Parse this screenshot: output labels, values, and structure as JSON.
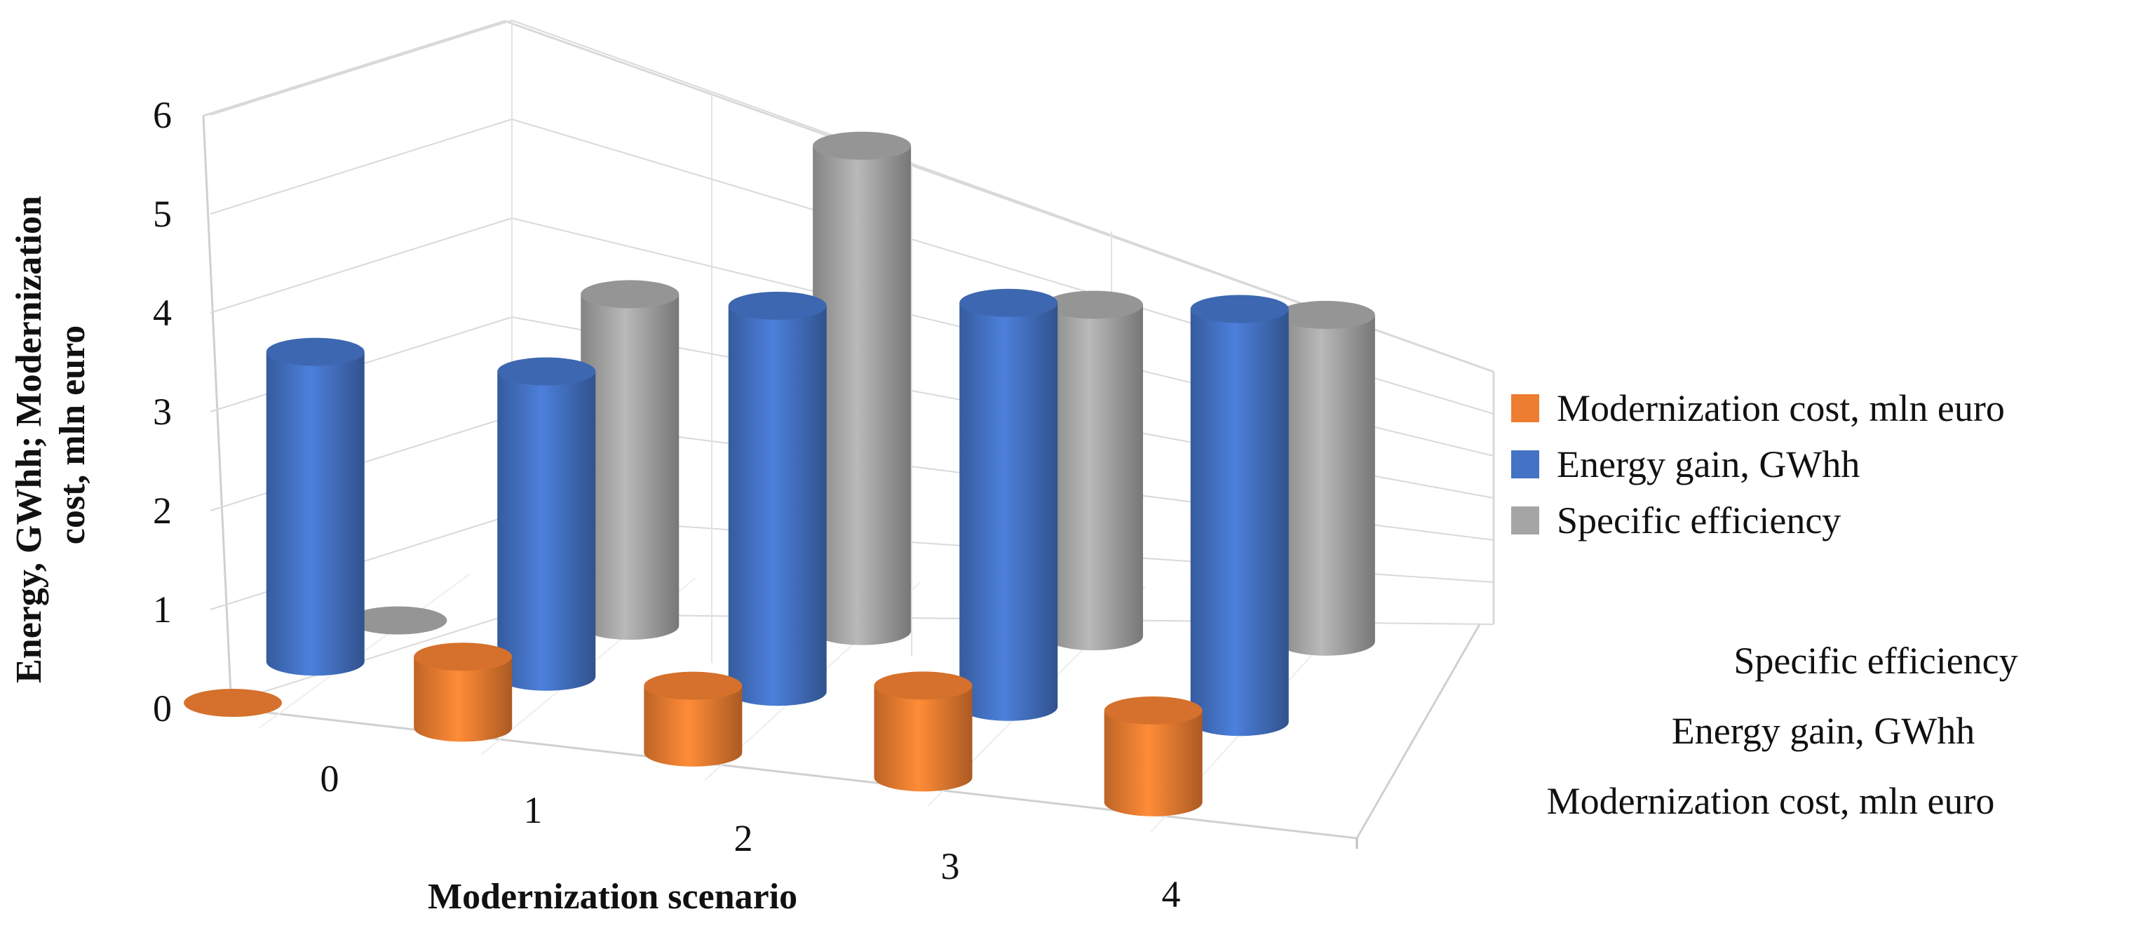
{
  "chart_data": {
    "type": "bar",
    "subtype": "3d-cylinder",
    "title": "",
    "xlabel": "Modernization scenario",
    "ylabel": "Energy, GWhh; Modernization cost, mln euro",
    "categories": [
      "0",
      "1",
      "2",
      "3",
      "4"
    ],
    "ylim": [
      0,
      6
    ],
    "yticks": [
      "0",
      "1",
      "2",
      "3",
      "4",
      "5",
      "6"
    ],
    "depth_labels": [
      "Specific efficiency",
      "Energy gain, GWhh",
      "Modernization cost, mln euro"
    ],
    "series": [
      {
        "name": "Modernization cost, mln euro",
        "color": "#ED7D31",
        "values": [
          0.0,
          0.85,
          0.8,
          1.1,
          1.1
        ]
      },
      {
        "name": "Energy gain, GWhh",
        "color": "#4472C4",
        "values": [
          3.45,
          3.4,
          4.3,
          4.5,
          4.6
        ]
      },
      {
        "name": "Specific efficiency",
        "color": "#A5A5A5",
        "values": [
          0.0,
          3.45,
          5.05,
          3.45,
          3.4
        ]
      }
    ],
    "legend_position": "right",
    "grid": true
  }
}
